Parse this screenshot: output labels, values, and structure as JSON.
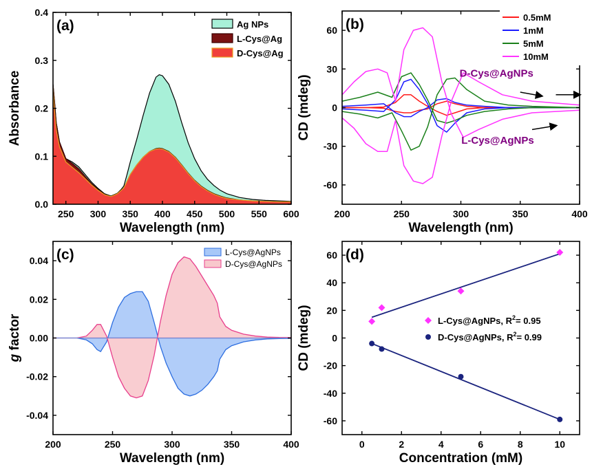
{
  "chart_data": [
    {
      "id": "a",
      "type": "area",
      "panel_label": "(a)",
      "xlabel": "Wavelength (nm)",
      "ylabel": "Absorbance",
      "xlim": [
        230,
        600
      ],
      "ylim": [
        0,
        0.4
      ],
      "xticks": [
        250,
        300,
        350,
        400,
        450,
        500,
        550,
        600
      ],
      "yticks": [
        0.0,
        0.1,
        0.2,
        0.3,
        0.4
      ],
      "ytick_labels": [
        "0.0",
        "0.1",
        "0.2",
        "0.3",
        "0.4"
      ],
      "legend_position": "top-right",
      "series": [
        {
          "name": "Ag NPs",
          "color": "#a8f0d8",
          "edge": "#000000",
          "x": [
            230,
            232,
            235,
            240,
            250,
            260,
            270,
            280,
            290,
            300,
            310,
            320,
            330,
            336,
            340,
            345,
            350,
            360,
            370,
            380,
            390,
            395,
            400,
            410,
            420,
            430,
            440,
            450,
            460,
            470,
            480,
            490,
            500,
            520,
            540,
            560,
            580,
            600
          ],
          "y": [
            0.25,
            0.22,
            0.17,
            0.13,
            0.095,
            0.088,
            0.078,
            0.062,
            0.046,
            0.033,
            0.022,
            0.017,
            0.023,
            0.031,
            0.038,
            0.062,
            0.088,
            0.135,
            0.185,
            0.232,
            0.265,
            0.27,
            0.268,
            0.25,
            0.215,
            0.17,
            0.128,
            0.095,
            0.07,
            0.052,
            0.039,
            0.029,
            0.022,
            0.014,
            0.01,
            0.008,
            0.007,
            0.006
          ]
        },
        {
          "name": "L-Cys@Ag",
          "color": "#7a1212",
          "edge": "#3a0000",
          "x": [
            230,
            232,
            235,
            240,
            250,
            260,
            270,
            280,
            290,
            300,
            310,
            320,
            330,
            340,
            350,
            360,
            370,
            380,
            390,
            395,
            400,
            410,
            420,
            430,
            440,
            450,
            460,
            470,
            480,
            490,
            500,
            520,
            540,
            560,
            580,
            600
          ],
          "y": [
            0.25,
            0.22,
            0.17,
            0.13,
            0.095,
            0.085,
            0.074,
            0.058,
            0.043,
            0.031,
            0.021,
            0.016,
            0.022,
            0.034,
            0.062,
            0.082,
            0.098,
            0.11,
            0.116,
            0.117,
            0.116,
            0.11,
            0.098,
            0.082,
            0.065,
            0.05,
            0.038,
            0.029,
            0.022,
            0.017,
            0.013,
            0.009,
            0.007,
            0.006,
            0.005,
            0.005
          ]
        },
        {
          "name": "D-Cys@Ag",
          "color": "#f0403a",
          "edge": "#e8a020",
          "x": [
            230,
            232,
            235,
            240,
            250,
            260,
            270,
            280,
            290,
            300,
            310,
            320,
            330,
            340,
            350,
            360,
            370,
            380,
            390,
            395,
            400,
            410,
            420,
            430,
            440,
            450,
            460,
            470,
            480,
            490,
            500,
            520,
            540,
            560,
            580,
            600
          ],
          "y": [
            0.245,
            0.2,
            0.155,
            0.12,
            0.088,
            0.077,
            0.066,
            0.053,
            0.04,
            0.029,
            0.02,
            0.016,
            0.022,
            0.034,
            0.062,
            0.082,
            0.098,
            0.11,
            0.115,
            0.116,
            0.115,
            0.109,
            0.097,
            0.081,
            0.064,
            0.049,
            0.037,
            0.028,
            0.021,
            0.016,
            0.012,
            0.009,
            0.007,
            0.006,
            0.005,
            0.005
          ]
        }
      ]
    },
    {
      "id": "b",
      "type": "line",
      "panel_label": "(b)",
      "xlabel": "Wavelength (nm)",
      "ylabel": "CD (mdeg)",
      "xlim": [
        200,
        400
      ],
      "ylim": [
        -75,
        75
      ],
      "xticks": [
        200,
        250,
        300,
        350,
        400
      ],
      "yticks": [
        -60,
        -30,
        0,
        30,
        60
      ],
      "legend_position": "top-right",
      "annotations": [
        {
          "text": "D-Cys@AgNPs",
          "x": 330,
          "y": 24
        },
        {
          "text": "L-Cys@AgNPs",
          "x": 331,
          "y": -28
        }
      ],
      "arrows": [
        {
          "x1": 368,
          "y1": 9,
          "x2": 350,
          "y2": 12
        },
        {
          "x1": 400,
          "y1": 10,
          "x2": 380,
          "y2": 10
        },
        {
          "x1": 380,
          "y1": -14,
          "x2": 360,
          "y2": -17
        }
      ],
      "series": [
        {
          "name": "0.5mM",
          "color": "#ff1a1a",
          "x": [
            200,
            220,
            235,
            245,
            252,
            258,
            265,
            272,
            280,
            288,
            295,
            305,
            320,
            340,
            360,
            400
          ],
          "y_d": [
            0,
            0,
            0.5,
            4,
            10,
            10,
            5,
            1,
            -3,
            -6,
            -4,
            -1,
            0,
            0,
            0,
            0
          ],
          "y_l": [
            0,
            0,
            -0.5,
            -3,
            -4,
            -4,
            -2,
            -1,
            3,
            5,
            3,
            1,
            0,
            0,
            0,
            0
          ]
        },
        {
          "name": "1mM",
          "color": "#1a1aff",
          "x": [
            200,
            220,
            235,
            245,
            252,
            258,
            265,
            272,
            280,
            288,
            295,
            305,
            320,
            340,
            360,
            400
          ],
          "y_d": [
            -1,
            -2,
            -3,
            6,
            20,
            22,
            14,
            3,
            -14,
            -19,
            -12,
            -4,
            -1,
            0,
            0,
            0
          ],
          "y_l": [
            1,
            2,
            3,
            -4,
            -7,
            -7,
            -3,
            0,
            6,
            7,
            4,
            2,
            1,
            0,
            0,
            0
          ]
        },
        {
          "name": "5mM",
          "color": "#1a801a",
          "x": [
            200,
            215,
            230,
            242,
            250,
            258,
            265,
            272,
            280,
            288,
            295,
            305,
            320,
            340,
            360,
            400
          ],
          "y_d": [
            5,
            8,
            12,
            8,
            24,
            27,
            18,
            6,
            -10,
            -12,
            -10,
            -6,
            -3,
            -1,
            0,
            0
          ],
          "y_l": [
            -3,
            -5,
            -8,
            -4,
            -18,
            -33,
            -30,
            -15,
            10,
            22,
            23,
            14,
            5,
            2,
            1,
            0
          ]
        },
        {
          "name": "10mM",
          "color": "#ff33ff",
          "x": [
            200,
            210,
            220,
            230,
            238,
            245,
            252,
            260,
            268,
            276,
            284,
            292,
            302,
            315,
            335,
            360,
            400
          ],
          "y_d": [
            10,
            20,
            28,
            30,
            27,
            5,
            45,
            60,
            62,
            55,
            20,
            -5,
            -23,
            -17,
            -9,
            -4,
            -2
          ],
          "y_l": [
            -8,
            -16,
            -28,
            -34,
            -34,
            -10,
            -45,
            -57,
            -59,
            -54,
            -22,
            5,
            27,
            20,
            10,
            5,
            2
          ]
        }
      ]
    },
    {
      "id": "c",
      "type": "area",
      "panel_label": "(c)",
      "xlabel": "Wavelength (nm)",
      "ylabel": "g factor",
      "ylabel_italic_part": "g",
      "ylabel_rest": " factor",
      "xlim": [
        200,
        400
      ],
      "ylim": [
        -0.05,
        0.05
      ],
      "xticks": [
        200,
        250,
        300,
        350,
        400
      ],
      "yticks": [
        -0.04,
        -0.02,
        0.0,
        0.02,
        0.04
      ],
      "ytick_labels": [
        "-0.04",
        "-0.02",
        "0.00",
        "0.02",
        "0.04"
      ],
      "legend_position": "top-right",
      "series": [
        {
          "name": "L-Cys@AgNPs",
          "color": "#a8c8f8",
          "edge": "#2d6ee0",
          "x": [
            200,
            210,
            220,
            228,
            233,
            237,
            240,
            245,
            250,
            255,
            260,
            265,
            270,
            275,
            280,
            285,
            290,
            295,
            300,
            305,
            310,
            315,
            320,
            325,
            330,
            335,
            338,
            340,
            345,
            350,
            360,
            370,
            380,
            390,
            400
          ],
          "y": [
            0,
            0,
            0,
            -0.001,
            -0.003,
            -0.006,
            -0.007,
            -0.002,
            0.008,
            0.016,
            0.021,
            0.023,
            0.024,
            0.024,
            0.019,
            0.008,
            -0.004,
            -0.013,
            -0.02,
            -0.026,
            -0.029,
            -0.03,
            -0.029,
            -0.027,
            -0.024,
            -0.02,
            -0.017,
            -0.011,
            -0.006,
            -0.004,
            -0.002,
            -0.001,
            -0.0005,
            -0.0003,
            -0.0002
          ]
        },
        {
          "name": "D-Cys@AgNPs",
          "color": "#f8c8cc",
          "edge": "#e83e8c",
          "x": [
            200,
            210,
            220,
            228,
            233,
            237,
            240,
            245,
            250,
            255,
            260,
            265,
            270,
            275,
            280,
            285,
            290,
            295,
            300,
            305,
            310,
            315,
            320,
            325,
            330,
            335,
            338,
            340,
            345,
            350,
            360,
            370,
            380,
            390,
            400
          ],
          "y": [
            0,
            0,
            0,
            0.001,
            0.004,
            0.007,
            0.007,
            0.001,
            -0.01,
            -0.02,
            -0.026,
            -0.03,
            -0.031,
            -0.03,
            -0.022,
            -0.009,
            0.008,
            0.022,
            0.033,
            0.039,
            0.042,
            0.041,
            0.037,
            0.032,
            0.027,
            0.022,
            0.018,
            0.011,
            0.006,
            0.004,
            0.002,
            0.001,
            0.0005,
            0.0003,
            0.0002
          ]
        }
      ]
    },
    {
      "id": "d",
      "type": "scatter",
      "panel_label": "(d)",
      "xlabel": "Concentration (mM)",
      "ylabel": "CD (mdeg)",
      "xlim": [
        -1,
        11
      ],
      "ylim": [
        -70,
        70
      ],
      "xticks": [
        0,
        2,
        4,
        6,
        8,
        10
      ],
      "yticks": [
        -60,
        -40,
        -20,
        0,
        20,
        40,
        60
      ],
      "legend_position": "center-right",
      "series": [
        {
          "name": "L-Cys@AgNPs, R",
          "sup": "2",
          "r2": "= 0.95",
          "color": "#ff33ff",
          "marker": "diamond",
          "x": [
            0.5,
            1,
            5,
            10
          ],
          "y": [
            12,
            22,
            34,
            62
          ],
          "fit": {
            "x": [
              0.5,
              10
            ],
            "y": [
              15,
              61
            ],
            "color": "#1a237e"
          }
        },
        {
          "name": "D-Cys@AgNPs, R",
          "sup": "2",
          "r2": "= 0.99",
          "color": "#1a237e",
          "marker": "circle",
          "x": [
            0.5,
            1,
            5,
            10
          ],
          "y": [
            -4,
            -8,
            -28,
            -59
          ],
          "fit": {
            "x": [
              0.5,
              10
            ],
            "y": [
              -4,
              -59
            ],
            "color": "#1a237e"
          }
        }
      ]
    }
  ]
}
